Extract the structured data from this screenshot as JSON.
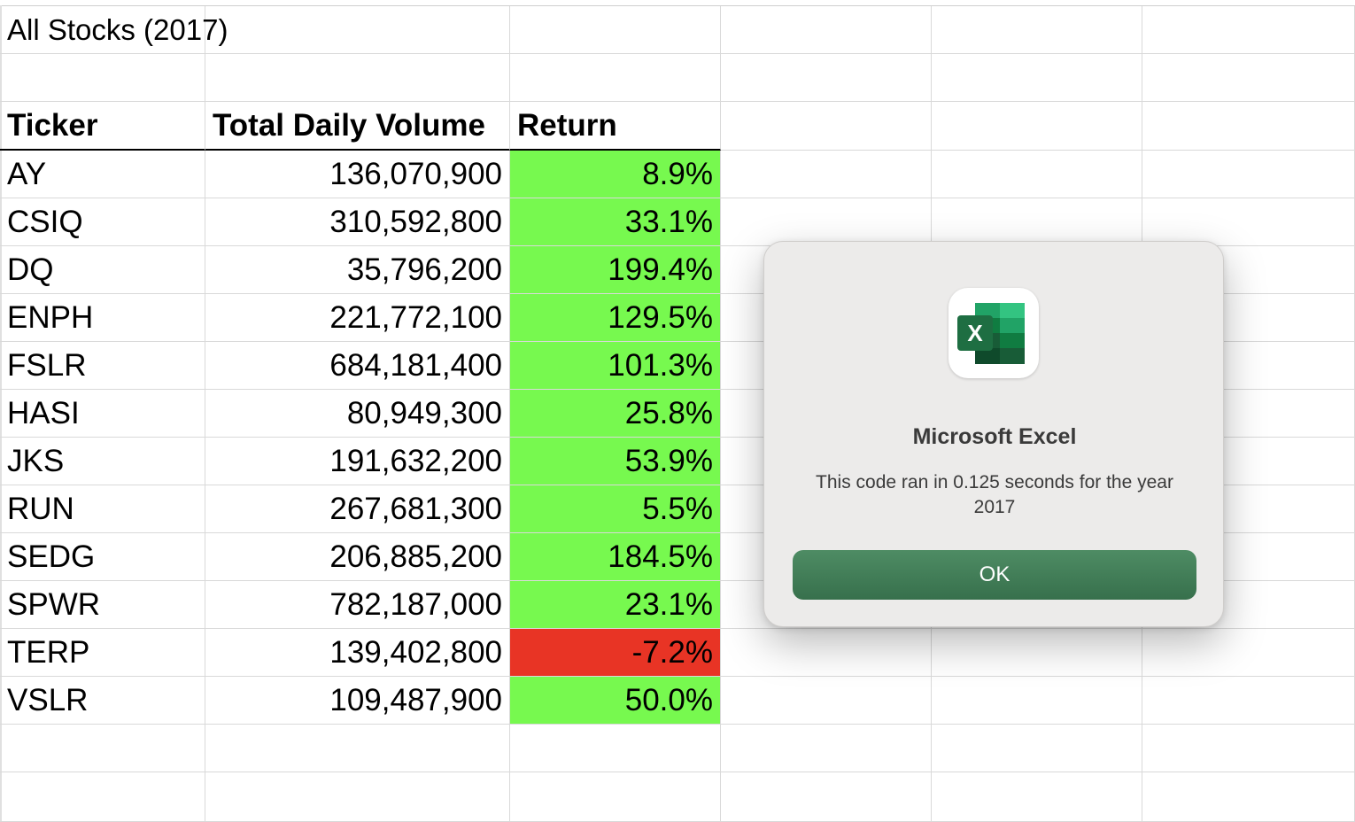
{
  "sheet": {
    "title": "All Stocks (2017)",
    "headers": {
      "ticker": "Ticker",
      "volume": "Total Daily Volume",
      "return": "Return"
    },
    "rows": [
      {
        "ticker": "AY",
        "volume": "136,070,900",
        "return": "8.9%",
        "status": "positive"
      },
      {
        "ticker": "CSIQ",
        "volume": "310,592,800",
        "return": "33.1%",
        "status": "positive"
      },
      {
        "ticker": "DQ",
        "volume": "35,796,200",
        "return": "199.4%",
        "status": "positive"
      },
      {
        "ticker": "ENPH",
        "volume": "221,772,100",
        "return": "129.5%",
        "status": "positive"
      },
      {
        "ticker": "FSLR",
        "volume": "684,181,400",
        "return": "101.3%",
        "status": "positive"
      },
      {
        "ticker": "HASI",
        "volume": "80,949,300",
        "return": "25.8%",
        "status": "positive"
      },
      {
        "ticker": "JKS",
        "volume": "191,632,200",
        "return": "53.9%",
        "status": "positive"
      },
      {
        "ticker": "RUN",
        "volume": "267,681,300",
        "return": "5.5%",
        "status": "positive"
      },
      {
        "ticker": "SEDG",
        "volume": "206,885,200",
        "return": "184.5%",
        "status": "positive"
      },
      {
        "ticker": "SPWR",
        "volume": "782,187,000",
        "return": "23.1%",
        "status": "positive"
      },
      {
        "ticker": "TERP",
        "volume": "139,402,800",
        "return": "-7.2%",
        "status": "negative"
      },
      {
        "ticker": "VSLR",
        "volume": "109,487,900",
        "return": "50.0%",
        "status": "positive"
      }
    ]
  },
  "colors": {
    "positive": "#77f94f",
    "negative": "#e83425",
    "excel_green": "#1e6e42",
    "ok_button": "#3e7b54"
  },
  "dialog": {
    "app_icon": "microsoft-excel-icon",
    "icon_letter": "X",
    "title": "Microsoft Excel",
    "message": "This code ran in 0.125 seconds for the year 2017",
    "ok_label": "OK"
  }
}
